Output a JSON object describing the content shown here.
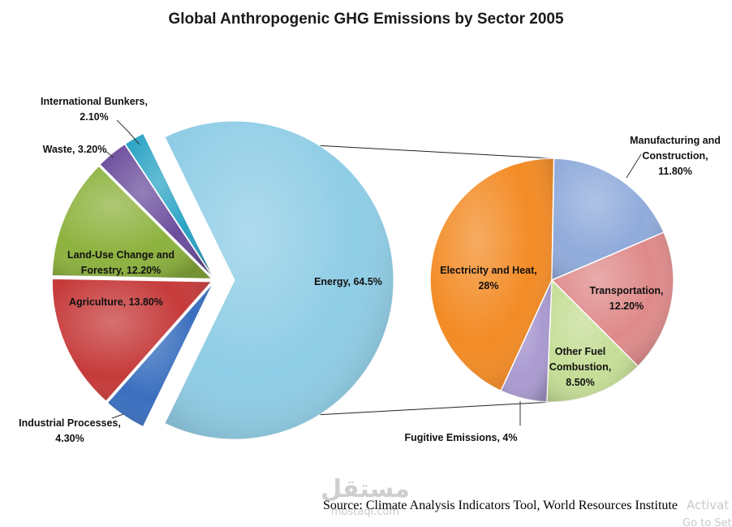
{
  "chart_data": {
    "type": "pie",
    "title": "Global Anthropogenic GHG Emissions by Sector 2005",
    "source": "Source: Climate Analysis Indicators Tool, World Resources Institute",
    "main_pie": {
      "slices": [
        {
          "label_lines": [
            "Energy, 64.5%"
          ],
          "value": 64.5,
          "color": "#8fcde6"
        },
        {
          "label_lines": [
            "Industrial Processes,",
            "4.30%"
          ],
          "value": 4.3,
          "color": "#3a6fbf"
        },
        {
          "label_lines": [
            "Agriculture, 13.80%"
          ],
          "value": 13.8,
          "color": "#c63a3a"
        },
        {
          "label_lines": [
            "Land-Use Change and",
            "Forestry, 12.20%"
          ],
          "value": 12.2,
          "color": "#8db23e"
        },
        {
          "label_lines": [
            "Waste, 3.20%"
          ],
          "value": 3.2,
          "color": "#6b4d9c"
        },
        {
          "label_lines": [
            "International Bunkers,",
            "2.10%"
          ],
          "value": 2.1,
          "color": "#2aa3c4"
        }
      ]
    },
    "breakout_pie": {
      "slices": [
        {
          "label_lines": [
            "Electricity and Heat,",
            "28%"
          ],
          "value": 28,
          "color": "#f38b25"
        },
        {
          "label_lines": [
            "Manufacturing and",
            "Construction,",
            "11.80%"
          ],
          "value": 11.8,
          "color": "#90abdb"
        },
        {
          "label_lines": [
            "Transportation,",
            "12.20%"
          ],
          "value": 12.2,
          "color": "#df8a8a"
        },
        {
          "label_lines": [
            "Other Fuel",
            "Combustion,",
            "8.50%"
          ],
          "value": 8.5,
          "color": "#c5dd96"
        },
        {
          "label_lines": [
            "Fugitive Emissions, 4%"
          ],
          "value": 4,
          "color": "#a99ad0"
        }
      ]
    }
  },
  "watermark": {
    "logo_text": "مستقل",
    "domain_text": "mostaql.com",
    "activate_text": "Activat",
    "settings_text": "Go to Set"
  }
}
